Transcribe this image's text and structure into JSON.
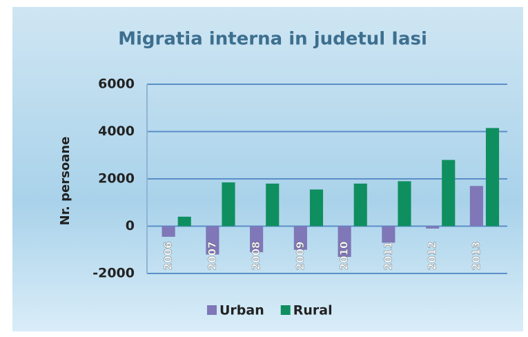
{
  "chart_data": {
    "type": "bar",
    "title": "Migratia interna in judetul Iasi",
    "ylabel": "Nr. persoane",
    "categories": [
      "2006",
      "2007",
      "2008",
      "2009",
      "2010",
      "2011",
      "2012",
      "2013"
    ],
    "series": [
      {
        "name": "Urban",
        "color": "#7f77b8",
        "values": [
          -450,
          -1200,
          -1100,
          -1000,
          -1300,
          -700,
          -100,
          1700
        ]
      },
      {
        "name": "Rural",
        "color": "#0f8f5f",
        "values": [
          400,
          1850,
          1800,
          1550,
          1800,
          1900,
          2800,
          4150
        ]
      }
    ],
    "ylim": [
      -2000,
      6000
    ],
    "yticks": [
      -2000,
      0,
      2000,
      4000,
      6000
    ],
    "grid": true,
    "legend": "bottom"
  }
}
